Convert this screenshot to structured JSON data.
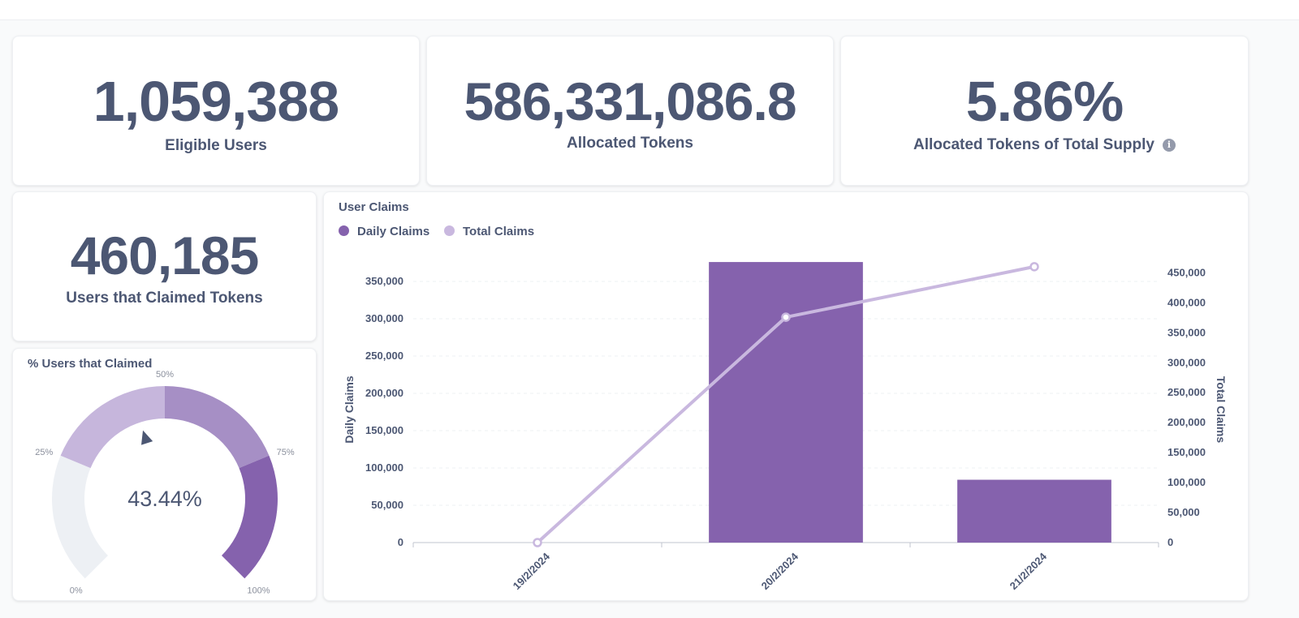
{
  "kpis": {
    "eligible_users": {
      "value": "1,059,388",
      "label": "Eligible Users"
    },
    "allocated_tokens": {
      "value": "586,331,086.8",
      "label": "Allocated Tokens"
    },
    "allocated_pct": {
      "value": "5.86%",
      "label": "Allocated Tokens of Total Supply",
      "info_icon": "info-icon"
    },
    "users_claimed": {
      "value": "460,185",
      "label": "Users that Claimed Tokens"
    }
  },
  "gauge": {
    "title": "% Users that Claimed",
    "value_text": "43.44%",
    "value": 43.44,
    "min": 0,
    "max": 100,
    "tick_labels": [
      "0%",
      "25%",
      "50%",
      "75%",
      "100%"
    ],
    "segments": [
      {
        "from": 0,
        "to": 25,
        "color": "#edf0f4"
      },
      {
        "from": 25,
        "to": 50,
        "color": "#c6b6dc"
      },
      {
        "from": 50,
        "to": 75,
        "color": "#a68fc5"
      },
      {
        "from": 75,
        "to": 100,
        "color": "#8562ad"
      }
    ]
  },
  "chart_data": {
    "type": "bar",
    "title": "User Claims",
    "categories": [
      "19/2/2024",
      "20/2/2024",
      "21/2/2024"
    ],
    "series": [
      {
        "name": "Daily Claims",
        "type": "bar",
        "axis": "left",
        "color": "#8562ad",
        "values": [
          0,
          376000,
          84200
        ]
      },
      {
        "name": "Total Claims",
        "type": "line",
        "axis": "right",
        "color": "#c9b8df",
        "values": [
          0,
          376000,
          460185
        ]
      }
    ],
    "ylabel": "Daily Claims",
    "y2label": "Total Claims",
    "ylim": [
      0,
      375000
    ],
    "y2lim": [
      0,
      460000
    ],
    "yticks": [
      0,
      50000,
      100000,
      150000,
      200000,
      250000,
      300000,
      350000
    ],
    "y2ticks": [
      0,
      50000,
      100000,
      150000,
      200000,
      250000,
      300000,
      350000,
      400000,
      450000
    ],
    "legend": "top-left",
    "grid": true
  }
}
